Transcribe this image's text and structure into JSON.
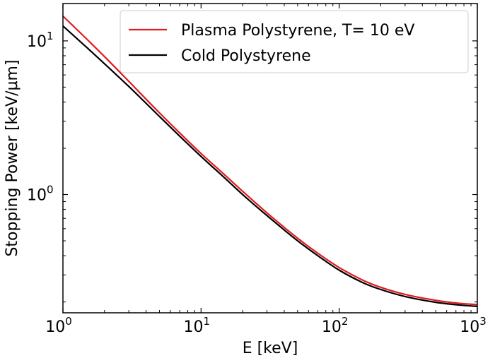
{
  "chart_data": {
    "type": "line",
    "xlabel": "E [keV]",
    "ylabel": "Stopping Power [keV/μm]",
    "xscale": "log",
    "yscale": "log",
    "xlim": [
      1,
      1000
    ],
    "ylim": [
      0.17,
      17.5
    ],
    "grid": false,
    "legend_position": "top-right",
    "x_ticks": [
      {
        "value": 1,
        "base": "10",
        "exp": "0"
      },
      {
        "value": 10,
        "base": "10",
        "exp": "1"
      },
      {
        "value": 100,
        "base": "10",
        "exp": "2"
      },
      {
        "value": 1000,
        "base": "10",
        "exp": "3"
      }
    ],
    "y_ticks": [
      {
        "value": 1,
        "base": "10",
        "exp": "0"
      },
      {
        "value": 10,
        "base": "10",
        "exp": "1"
      }
    ],
    "x": [
      1,
      1.5,
      2,
      3,
      5,
      7,
      10,
      15,
      20,
      30,
      50,
      70,
      100,
      150,
      200,
      300,
      500,
      700,
      1000
    ],
    "series": [
      {
        "name": "Plasma Polystyrene, T= 10 eV",
        "color": "#e31a1c",
        "values": [
          14.5,
          10.2,
          7.9,
          5.45,
          3.4,
          2.52,
          1.85,
          1.33,
          1.05,
          0.76,
          0.52,
          0.415,
          0.335,
          0.276,
          0.249,
          0.224,
          0.205,
          0.197,
          0.192
        ]
      },
      {
        "name": "Cold Polystyrene",
        "color": "#000000",
        "values": [
          12.5,
          9.0,
          7.1,
          5.05,
          3.22,
          2.4,
          1.77,
          1.27,
          1.0,
          0.73,
          0.5,
          0.4,
          0.322,
          0.266,
          0.241,
          0.217,
          0.199,
          0.192,
          0.187
        ]
      }
    ]
  }
}
